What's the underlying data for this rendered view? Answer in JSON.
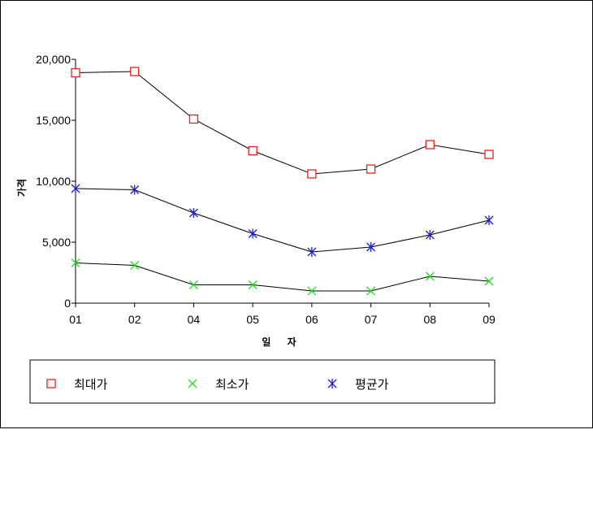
{
  "chart_data": {
    "type": "line",
    "categories": [
      "01",
      "02",
      "04",
      "05",
      "06",
      "07",
      "08",
      "09"
    ],
    "xlabel": "일 자",
    "ylabel": "가격",
    "ylim": [
      0,
      20000
    ],
    "yticks": [
      0,
      5000,
      10000,
      15000,
      20000
    ],
    "ytick_labels": [
      "0",
      "5,000",
      "10,000",
      "15,000",
      "20,000"
    ],
    "grid": false,
    "legend_placement": "bottom",
    "series": [
      {
        "name": "최대가",
        "color": "#e8231e",
        "marker": "square",
        "values": [
          18900,
          19000,
          15100,
          12500,
          10600,
          11000,
          13000,
          12200
        ]
      },
      {
        "name": "최소가",
        "color": "#22e21e",
        "marker": "x",
        "values": [
          3300,
          3100,
          1500,
          1500,
          1000,
          1000,
          2200,
          1800
        ]
      },
      {
        "name": "평균가",
        "color": "#1e1ed8",
        "marker": "asterisk",
        "values": [
          9400,
          9300,
          7400,
          5700,
          4200,
          4600,
          5600,
          6800
        ]
      }
    ]
  }
}
